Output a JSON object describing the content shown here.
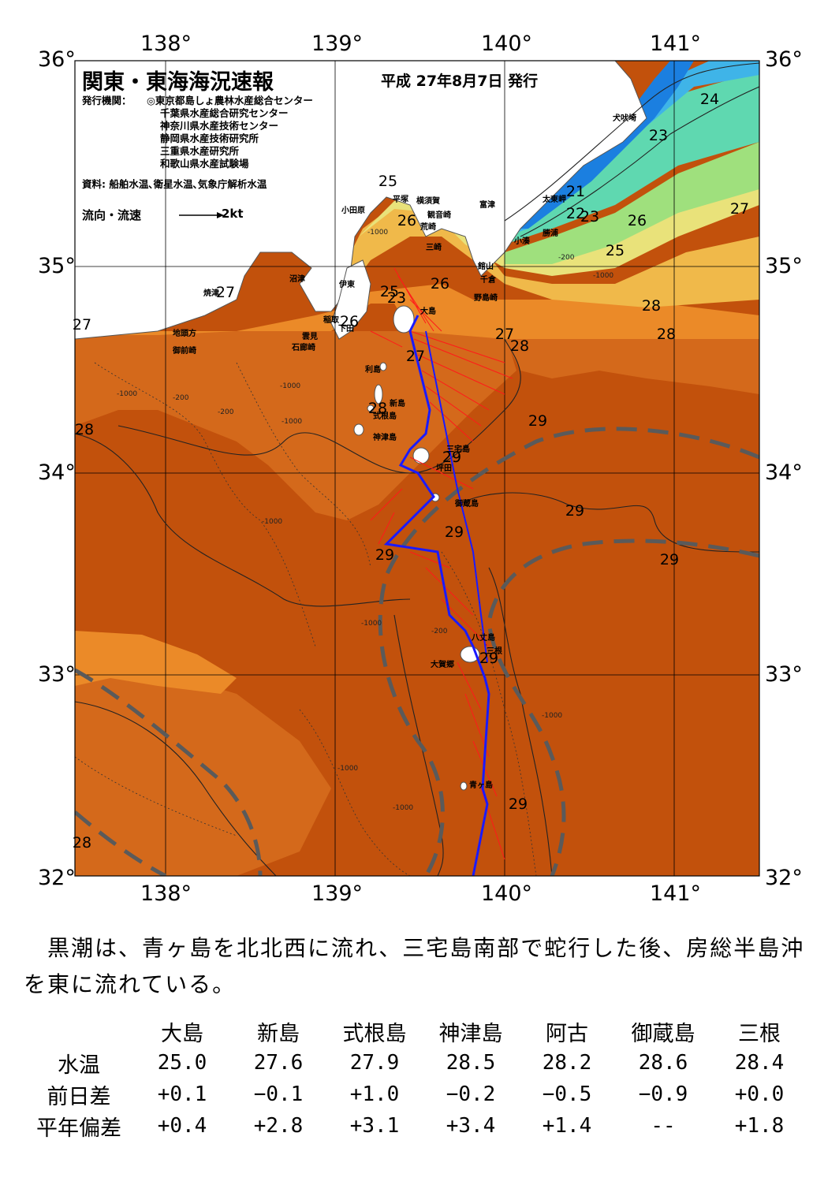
{
  "header": {
    "title": "関東・東海海況速報",
    "date": "平成 27年8月7日 発行"
  },
  "issuers": {
    "label": "発行機関：",
    "items": [
      "◎東京都島しょ農林水産総合センター",
      "千葉県水産総合研究センター",
      "神奈川県水産技術センター",
      "静岡県水産技術研究所",
      "三重県水産研究所",
      "和歌山県水産試験場"
    ],
    "sources": "資料: 船舶水温､衛星水温､気象庁解析水温"
  },
  "legend": {
    "label": "流向・流速",
    "value": "2kt"
  },
  "axes": {
    "lon_labels": [
      "138°",
      "139°",
      "140°",
      "141°"
    ],
    "lat_labels": [
      "36°",
      "35°",
      "34°",
      "33°",
      "32°"
    ]
  },
  "isotherm_labels": [
    "24",
    "23",
    "21",
    "22",
    "23",
    "26",
    "27",
    "25",
    "26",
    "25",
    "26",
    "23",
    "25",
    "26",
    "27",
    "28",
    "27",
    "28",
    "27",
    "28",
    "29",
    "28",
    "29",
    "29",
    "29",
    "29",
    "29",
    "29",
    "29",
    "28",
    "28",
    "27"
  ],
  "depth_labels": [
    "-1000",
    "-200",
    "-1000",
    "-200",
    "-1000",
    "-200",
    "-1000",
    "-1000",
    "-1000",
    "-1000",
    "-200",
    "-1000",
    "-1000",
    "-1000"
  ],
  "places": [
    "犬吠埼",
    "太東岬",
    "勝浦",
    "小湊",
    "富津",
    "館山",
    "千倉",
    "野島崎",
    "横須賀",
    "観音崎",
    "平塚",
    "荒崎",
    "三崎",
    "小田原",
    "沼津",
    "伊東",
    "稲取",
    "下田",
    "雲見",
    "石廊崎",
    "焼津",
    "地頭方",
    "御前崎",
    "利島",
    "新島",
    "式根島",
    "神津島",
    "三宅島",
    "坪田",
    "御蔵島",
    "八丈島",
    "三根",
    "大賀郷",
    "青ヶ島",
    "大島"
  ],
  "summary": "　黒潮は、青ヶ島を北北西に流れ、三宅島南部で蛇行した後、房総半島沖を東に流れている。",
  "table": {
    "columns": [
      "大島",
      "新島",
      "式根島",
      "神津島",
      "阿古",
      "御蔵島",
      "三根"
    ],
    "rows": [
      {
        "label": "水温",
        "values": [
          "25.0",
          "27.6",
          "27.9",
          "28.5",
          "28.2",
          "28.6",
          "28.4"
        ]
      },
      {
        "label": "前日差",
        "values": [
          "+0.1",
          "−0.1",
          "+1.0",
          "−0.2",
          "−0.5",
          "−0.9",
          "+0.0"
        ]
      },
      {
        "label": "平年偏差",
        "values": [
          "+0.4",
          "+2.8",
          "+3.1",
          "+3.4",
          "+1.4",
          "--",
          "+1.8"
        ]
      }
    ]
  },
  "colors": {
    "land": "#ffffff",
    "sst_29": "#c2510c",
    "sst_28": "#d4691b",
    "sst_27": "#eb8a28",
    "sst_26": "#f0b94a",
    "sst_25": "#e9e27a",
    "sst_24": "#9fe07d",
    "sst_23": "#5fd8b0",
    "sst_22": "#3fb4e8",
    "sst_21": "#1b7fe0",
    "kuroshio_axis": "#5a5a5a",
    "ship_track": "#1a1aff",
    "current_vectors": "#ff1a1a"
  }
}
